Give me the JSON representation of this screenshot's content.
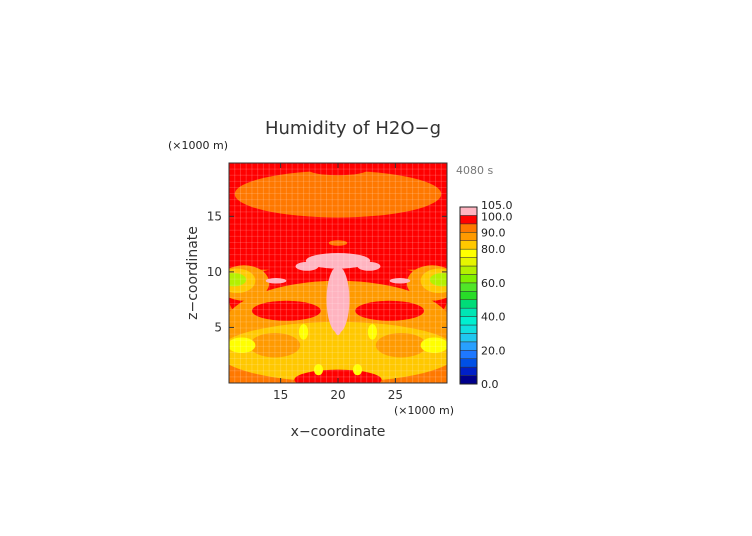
{
  "chart_data": {
    "type": "heatmap",
    "title": "Humidity of H2O−g",
    "xlabel": "x−coordinate",
    "ylabel": "z−coordinate",
    "x_unit": "(×1000 m)",
    "y_unit": "(×1000 m)",
    "time_label": "4080 s",
    "xlim": [
      10.5,
      29.5
    ],
    "ylim": [
      0,
      19.8
    ],
    "x_ticks": [
      "15",
      "20",
      "25"
    ],
    "x_tick_values": [
      15,
      20,
      25
    ],
    "y_ticks": [
      "5",
      "10",
      "15"
    ],
    "y_tick_values": [
      5,
      10,
      15
    ],
    "colorbar": {
      "min": 0,
      "max": 105,
      "tick_labels": [
        "0.0",
        "20.0",
        "40.0",
        "60.0",
        "80.0",
        "90.0",
        "100.0",
        "105.0"
      ],
      "tick_values": [
        0,
        20,
        40,
        60,
        80,
        90,
        100,
        105
      ],
      "levels": [
        {
          "from": 0,
          "to": 5,
          "color": "#00008c"
        },
        {
          "from": 5,
          "to": 10,
          "color": "#0020c8"
        },
        {
          "from": 10,
          "to": 15,
          "color": "#0050e6"
        },
        {
          "from": 15,
          "to": 20,
          "color": "#1e78ff"
        },
        {
          "from": 20,
          "to": 25,
          "color": "#28a0ff"
        },
        {
          "from": 25,
          "to": 30,
          "color": "#20c8f0"
        },
        {
          "from": 30,
          "to": 35,
          "color": "#10e0e0"
        },
        {
          "from": 35,
          "to": 40,
          "color": "#00f0d0"
        },
        {
          "from": 40,
          "to": 45,
          "color": "#00e6b4"
        },
        {
          "from": 45,
          "to": 50,
          "color": "#00dc78"
        },
        {
          "from": 50,
          "to": 55,
          "color": "#28dc28"
        },
        {
          "from": 55,
          "to": 60,
          "color": "#50e628"
        },
        {
          "from": 60,
          "to": 65,
          "color": "#7ff000"
        },
        {
          "from": 65,
          "to": 70,
          "color": "#b4f000"
        },
        {
          "from": 70,
          "to": 75,
          "color": "#e6f500"
        },
        {
          "from": 75,
          "to": 80,
          "color": "#ffff00"
        },
        {
          "from": 80,
          "to": 85,
          "color": "#ffc800"
        },
        {
          "from": 85,
          "to": 90,
          "color": "#ff9a00"
        },
        {
          "from": 90,
          "to": 95,
          "color": "#ff7800"
        },
        {
          "from": 95,
          "to": 100,
          "color": "#ff0000"
        },
        {
          "from": 100,
          "to": 105,
          "color": "#ffb4c0"
        }
      ]
    },
    "field_regions": [
      {
        "value": 92,
        "shape": "rect",
        "x": [
          10.5,
          29.5
        ],
        "z": [
          0,
          19.8
        ]
      },
      {
        "value": 97,
        "shape": "rect",
        "x": [
          10.5,
          29.5
        ],
        "z": [
          10.2,
          19.8
        ]
      },
      {
        "value": 92,
        "shape": "ellipse",
        "cx": 20,
        "cz": 17.0,
        "rx": 9.0,
        "rz": 2.1
      },
      {
        "value": 97,
        "shape": "ellipse",
        "cx": 20,
        "cz": 19.2,
        "rx": 2.6,
        "rz": 0.5
      },
      {
        "value": 97,
        "shape": "ellipse",
        "cx": 20,
        "cz": 13.4,
        "rx": 1.4,
        "rz": 0.6
      },
      {
        "value": 92,
        "shape": "ellipse",
        "cx": 20,
        "cz": 12.6,
        "rx": 0.8,
        "rz": 0.25
      },
      {
        "value": 97,
        "shape": "ellipse",
        "cx": 20,
        "cz": 7.5,
        "rx": 9.5,
        "rz": 3.5
      },
      {
        "value": 88,
        "shape": "ellipse",
        "cx": 20,
        "cz": 5.0,
        "rx": 10.0,
        "rz": 4.2
      },
      {
        "value": 82,
        "shape": "ellipse",
        "cx": 20,
        "cz": 2.8,
        "rx": 10.5,
        "rz": 2.7
      },
      {
        "value": 97,
        "shape": "ellipse",
        "cx": 20,
        "cz": 0.3,
        "rx": 3.8,
        "rz": 0.9
      },
      {
        "value": 88,
        "shape": "ellipse",
        "cx": 14.5,
        "cz": 3.4,
        "rx": 2.2,
        "rz": 1.1
      },
      {
        "value": 88,
        "shape": "ellipse",
        "cx": 25.5,
        "cz": 3.4,
        "rx": 2.2,
        "rz": 1.1
      },
      {
        "value": 77,
        "shape": "ellipse",
        "cx": 11.6,
        "cz": 3.4,
        "rx": 1.2,
        "rz": 0.7
      },
      {
        "value": 77,
        "shape": "ellipse",
        "cx": 28.4,
        "cz": 3.4,
        "rx": 1.2,
        "rz": 0.7
      },
      {
        "value": 77,
        "shape": "ellipse",
        "cx": 17.0,
        "cz": 4.6,
        "rx": 0.4,
        "rz": 0.7
      },
      {
        "value": 77,
        "shape": "ellipse",
        "cx": 23.0,
        "cz": 4.6,
        "rx": 0.4,
        "rz": 0.7
      },
      {
        "value": 77,
        "shape": "ellipse",
        "cx": 18.3,
        "cz": 1.2,
        "rx": 0.4,
        "rz": 0.5
      },
      {
        "value": 77,
        "shape": "ellipse",
        "cx": 21.7,
        "cz": 1.2,
        "rx": 0.4,
        "rz": 0.5
      },
      {
        "value": 97,
        "shape": "ellipse",
        "cx": 15.5,
        "cz": 6.5,
        "rx": 3.0,
        "rz": 0.9
      },
      {
        "value": 97,
        "shape": "ellipse",
        "cx": 24.5,
        "cz": 6.5,
        "rx": 3.0,
        "rz": 0.9
      },
      {
        "value": 88,
        "shape": "ellipse",
        "cx": 11.8,
        "cz": 9.0,
        "rx": 2.2,
        "rz": 1.6
      },
      {
        "value": 88,
        "shape": "ellipse",
        "cx": 28.2,
        "cz": 9.0,
        "rx": 2.2,
        "rz": 1.6
      },
      {
        "value": 82,
        "shape": "ellipse",
        "cx": 11.2,
        "cz": 9.2,
        "rx": 1.6,
        "rz": 1.1
      },
      {
        "value": 82,
        "shape": "ellipse",
        "cx": 28.8,
        "cz": 9.2,
        "rx": 1.6,
        "rz": 1.1
      },
      {
        "value": 67,
        "shape": "ellipse",
        "cx": 10.9,
        "cz": 9.3,
        "rx": 1.1,
        "rz": 0.6
      },
      {
        "value": 67,
        "shape": "ellipse",
        "cx": 29.1,
        "cz": 9.3,
        "rx": 1.1,
        "rz": 0.6
      },
      {
        "value": 102,
        "shape": "ellipse",
        "cx": 20,
        "cz": 11.0,
        "rx": 2.8,
        "rz": 0.7
      },
      {
        "value": 102,
        "shape": "ellipse",
        "cx": 17.3,
        "cz": 10.5,
        "rx": 1.0,
        "rz": 0.4
      },
      {
        "value": 102,
        "shape": "ellipse",
        "cx": 22.7,
        "cz": 10.5,
        "rx": 1.0,
        "rz": 0.4
      },
      {
        "value": 102,
        "shape": "ellipse",
        "cx": 20,
        "cz": 7.5,
        "rx": 1.0,
        "rz": 3.0
      },
      {
        "value": 102,
        "shape": "ellipse",
        "cx": 20,
        "cz": 5.3,
        "rx": 0.35,
        "rz": 1.0
      },
      {
        "value": 102,
        "shape": "ellipse",
        "cx": 14.6,
        "cz": 9.2,
        "rx": 0.9,
        "rz": 0.25
      },
      {
        "value": 102,
        "shape": "ellipse",
        "cx": 25.4,
        "cz": 9.2,
        "rx": 0.9,
        "rz": 0.25
      }
    ]
  }
}
